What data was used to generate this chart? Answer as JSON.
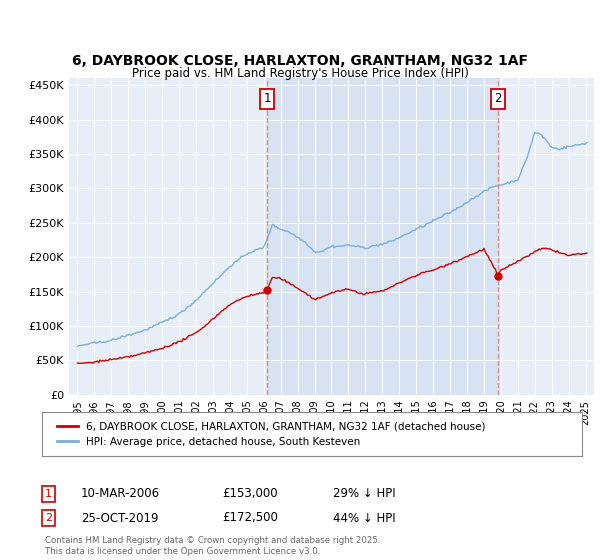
{
  "title": "6, DAYBROOK CLOSE, HARLAXTON, GRANTHAM, NG32 1AF",
  "subtitle": "Price paid vs. HM Land Registry's House Price Index (HPI)",
  "bg_color": "#e8eef8",
  "hpi_color": "#7ab0d8",
  "price_color": "#cc0000",
  "vline_color": "#e08080",
  "shade_color": "#d0dff0",
  "legend_label_price": "6, DAYBROOK CLOSE, HARLAXTON, GRANTHAM, NG32 1AF (detached house)",
  "legend_label_hpi": "HPI: Average price, detached house, South Kesteven",
  "annotation1_date": "10-MAR-2006",
  "annotation1_price": "£153,000",
  "annotation1_note": "29% ↓ HPI",
  "annotation2_date": "25-OCT-2019",
  "annotation2_price": "£172,500",
  "annotation2_note": "44% ↓ HPI",
  "footer": "Contains HM Land Registry data © Crown copyright and database right 2025.\nThis data is licensed under the Open Government Licence v3.0.",
  "ylim": [
    0,
    460000
  ],
  "yticks": [
    0,
    50000,
    100000,
    150000,
    200000,
    250000,
    300000,
    350000,
    400000,
    450000
  ],
  "ytick_labels": [
    "£0",
    "£50K",
    "£100K",
    "£150K",
    "£200K",
    "£250K",
    "£300K",
    "£350K",
    "£400K",
    "£450K"
  ],
  "sale1_year": 2006.19,
  "sale1_value": 153000,
  "sale2_year": 2019.82,
  "sale2_value": 172500
}
